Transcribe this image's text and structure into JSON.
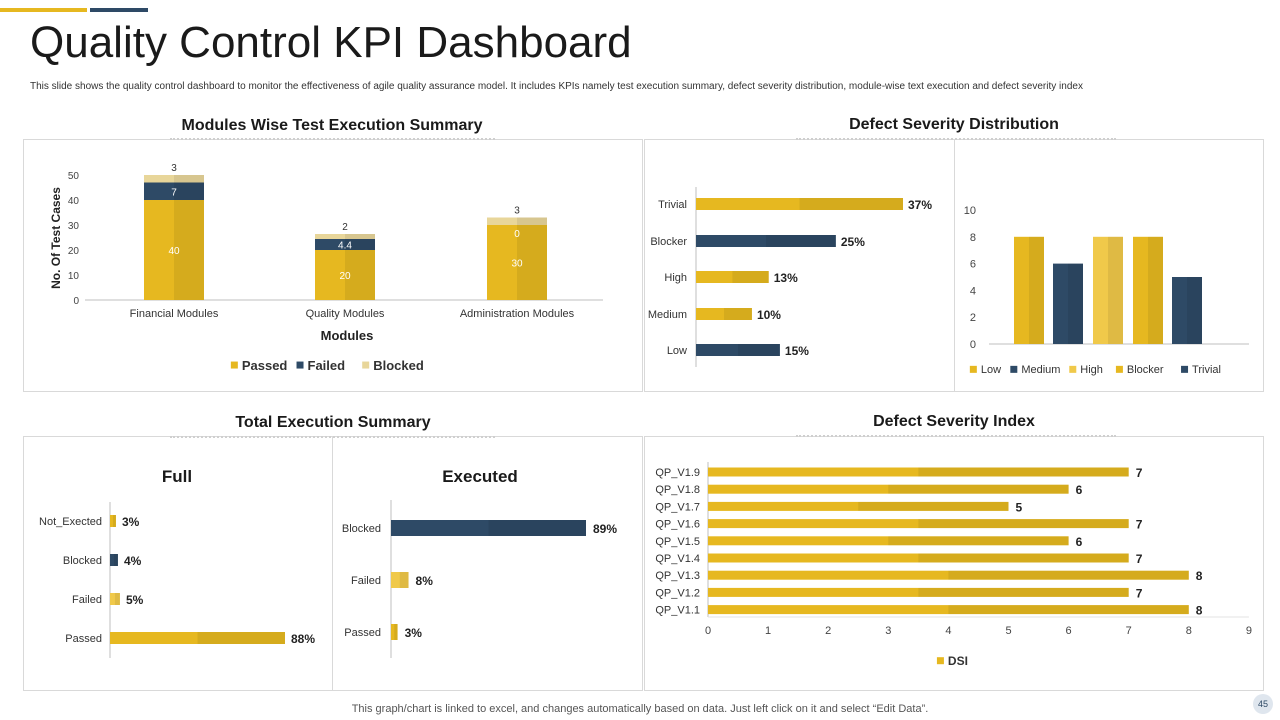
{
  "header": {
    "title": "Quality Control KPI Dashboard",
    "subtitle": "This slide shows the quality control dashboard to monitor the effectiveness of agile quality assurance model. It includes KPIs namely test execution summary, defect severity distribution, module-wise text execution and defect severity index"
  },
  "colors": {
    "gold": "#e6b820",
    "gold_dark": "#d4a82a",
    "gold_light": "#f0c94a",
    "navy": "#2e4a66",
    "blocked_light": "#e8d69a",
    "axis": "#bfbfbf"
  },
  "panels": {
    "modules_title": "Modules Wise Test Execution Summary",
    "distribution_title": "Defect Severity Distribution",
    "total_title": "Total Execution Summary",
    "index_title": "Defect Severity Index"
  },
  "footer": {
    "note": "This graph/chart is linked to excel, and changes automatically based on data. Just left click on it and select “Edit Data”.",
    "page_number": "45"
  },
  "chart_data": [
    {
      "id": "modules",
      "type": "bar",
      "stacked": true,
      "title": "Modules Wise Test Execution Summary",
      "xlabel": "Modules",
      "ylabel": "No. Of Test Cases",
      "ylim": [
        0,
        50
      ],
      "yticks": [
        "0",
        "10",
        "20",
        "30",
        "40",
        "50"
      ],
      "categories": [
        "Financial Modules",
        "Quality Modules",
        "Administration Modules"
      ],
      "series": [
        {
          "name": "Passed",
          "values": [
            40,
            20,
            30
          ],
          "labels": [
            "40",
            "20",
            "30"
          ]
        },
        {
          "name": "Failed",
          "values": [
            7,
            4.4,
            0
          ],
          "labels": [
            "7",
            "4.4",
            "0"
          ]
        },
        {
          "name": "Blocked",
          "values": [
            3,
            2,
            3
          ],
          "labels": [
            "3",
            "2",
            "3"
          ]
        }
      ],
      "legend": "bottom"
    },
    {
      "id": "distribution_pct",
      "type": "bar",
      "orientation": "horizontal",
      "categories": [
        "Trivial",
        "Blocker",
        "High",
        "Medium",
        "Low"
      ],
      "values": [
        37,
        25,
        13,
        10,
        15
      ],
      "labels": [
        "37%",
        "25%",
        "13%",
        "10%",
        "15%"
      ],
      "colors": [
        "gold",
        "navy",
        "gold",
        "gold",
        "navy"
      ]
    },
    {
      "id": "distribution_count",
      "type": "bar",
      "ylim": [
        0,
        10
      ],
      "yticks": [
        "0",
        "2",
        "4",
        "6",
        "8",
        "10"
      ],
      "categories": [
        "Low",
        "Medium",
        "High",
        "Blocker",
        "Trivial"
      ],
      "values": [
        8,
        6,
        8,
        8,
        5
      ],
      "colors": [
        "gold",
        "navy",
        "gold_light",
        "gold",
        "navy"
      ],
      "legend": "bottom"
    },
    {
      "id": "full",
      "type": "bar",
      "orientation": "horizontal",
      "title": "Full",
      "categories": [
        "Not_Exected",
        "Blocked",
        "Failed",
        "Passed"
      ],
      "values": [
        3,
        4,
        5,
        88
      ],
      "labels": [
        "3%",
        "4%",
        "5%",
        "88%"
      ],
      "colors": [
        "gold",
        "navy",
        "gold_light",
        "gold"
      ]
    },
    {
      "id": "executed",
      "type": "bar",
      "orientation": "horizontal",
      "title": "Executed",
      "categories": [
        "Blocked",
        "Failed",
        "Passed"
      ],
      "values": [
        89,
        8,
        3
      ],
      "labels": [
        "89%",
        "8%",
        "3%"
      ],
      "colors": [
        "navy",
        "gold_light",
        "gold"
      ]
    },
    {
      "id": "dsi",
      "type": "bar",
      "orientation": "horizontal",
      "title": "Defect Severity Index",
      "categories": [
        "QP_V1.9",
        "QP_V1.8",
        "QP_V1.7",
        "QP_V1.6",
        "QP_V1.5",
        "QP_V1.4",
        "QP_V1.3",
        "QP_V1.2",
        "QP_V1.1"
      ],
      "values": [
        7,
        6,
        5,
        7,
        6,
        7,
        8,
        7,
        8
      ],
      "labels": [
        "7",
        "6",
        "5",
        "7",
        "6",
        "7",
        "8",
        "7",
        "8"
      ],
      "xlim": [
        0,
        9
      ],
      "xticks": [
        "0",
        "1",
        "2",
        "3",
        "4",
        "5",
        "6",
        "7",
        "8",
        "9"
      ],
      "series_name": "DSI",
      "legend": "bottom"
    }
  ]
}
